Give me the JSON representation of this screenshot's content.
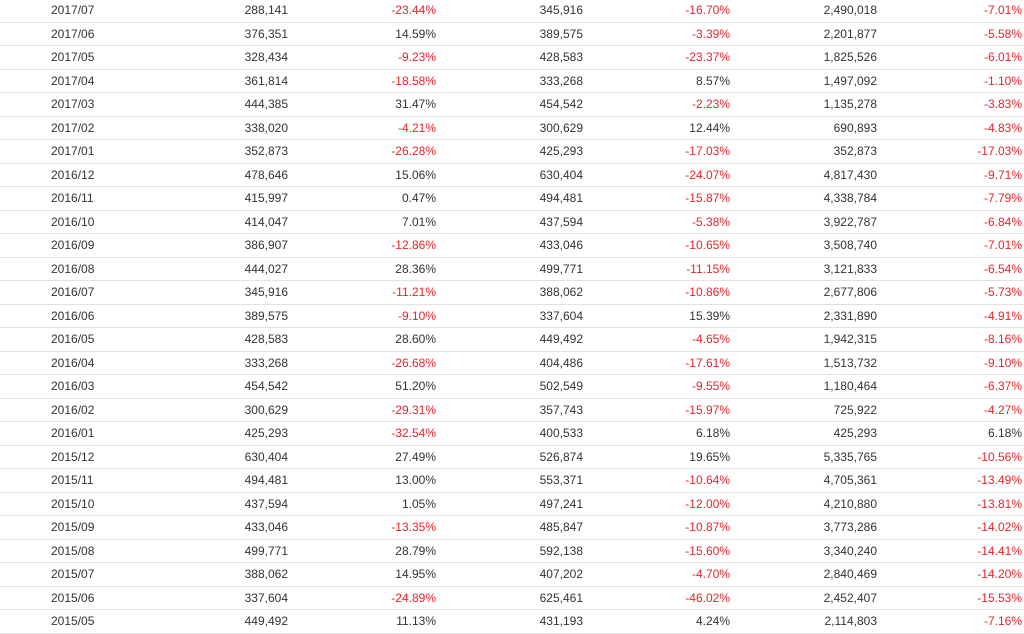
{
  "colors": {
    "text": "#333333",
    "negative": "#e8242b",
    "row_border": "#e2e2e2"
  },
  "rows": [
    [
      "2017/07",
      "288,141",
      "-23.44%",
      "345,916",
      "-16.70%",
      "2,490,018",
      "-7.01%"
    ],
    [
      "2017/06",
      "376,351",
      "14.59%",
      "389,575",
      "-3.39%",
      "2,201,877",
      "-5.58%"
    ],
    [
      "2017/05",
      "328,434",
      "-9.23%",
      "428,583",
      "-23.37%",
      "1,825,526",
      "-6.01%"
    ],
    [
      "2017/04",
      "361,814",
      "-18.58%",
      "333,268",
      "8.57%",
      "1,497,092",
      "-1.10%"
    ],
    [
      "2017/03",
      "444,385",
      "31.47%",
      "454,542",
      "-2.23%",
      "1,135,278",
      "-3.83%"
    ],
    [
      "2017/02",
      "338,020",
      "-4.21%",
      "300,629",
      "12.44%",
      "690,893",
      "-4.83%"
    ],
    [
      "2017/01",
      "352,873",
      "-26.28%",
      "425,293",
      "-17.03%",
      "352,873",
      "-17.03%"
    ],
    [
      "2016/12",
      "478,646",
      "15.06%",
      "630,404",
      "-24.07%",
      "4,817,430",
      "-9.71%"
    ],
    [
      "2016/11",
      "415,997",
      "0.47%",
      "494,481",
      "-15.87%",
      "4,338,784",
      "-7.79%"
    ],
    [
      "2016/10",
      "414,047",
      "7.01%",
      "437,594",
      "-5.38%",
      "3,922,787",
      "-6.84%"
    ],
    [
      "2016/09",
      "386,907",
      "-12.86%",
      "433,046",
      "-10.65%",
      "3,508,740",
      "-7.01%"
    ],
    [
      "2016/08",
      "444,027",
      "28.36%",
      "499,771",
      "-11.15%",
      "3,121,833",
      "-6.54%"
    ],
    [
      "2016/07",
      "345,916",
      "-11.21%",
      "388,062",
      "-10.86%",
      "2,677,806",
      "-5.73%"
    ],
    [
      "2016/06",
      "389,575",
      "-9.10%",
      "337,604",
      "15.39%",
      "2,331,890",
      "-4.91%"
    ],
    [
      "2016/05",
      "428,583",
      "28.60%",
      "449,492",
      "-4.65%",
      "1,942,315",
      "-8.16%"
    ],
    [
      "2016/04",
      "333,268",
      "-26.68%",
      "404,486",
      "-17.61%",
      "1,513,732",
      "-9.10%"
    ],
    [
      "2016/03",
      "454,542",
      "51.20%",
      "502,549",
      "-9.55%",
      "1,180,464",
      "-6.37%"
    ],
    [
      "2016/02",
      "300,629",
      "-29.31%",
      "357,743",
      "-15.97%",
      "725,922",
      "-4.27%"
    ],
    [
      "2016/01",
      "425,293",
      "-32.54%",
      "400,533",
      "6.18%",
      "425,293",
      "6.18%"
    ],
    [
      "2015/12",
      "630,404",
      "27.49%",
      "526,874",
      "19.65%",
      "5,335,765",
      "-10.56%"
    ],
    [
      "2015/11",
      "494,481",
      "13.00%",
      "553,371",
      "-10.64%",
      "4,705,361",
      "-13.49%"
    ],
    [
      "2015/10",
      "437,594",
      "1.05%",
      "497,241",
      "-12.00%",
      "4,210,880",
      "-13.81%"
    ],
    [
      "2015/09",
      "433,046",
      "-13.35%",
      "485,847",
      "-10.87%",
      "3,773,286",
      "-14.02%"
    ],
    [
      "2015/08",
      "499,771",
      "28.79%",
      "592,138",
      "-15.60%",
      "3,340,240",
      "-14.41%"
    ],
    [
      "2015/07",
      "388,062",
      "14.95%",
      "407,202",
      "-4.70%",
      "2,840,469",
      "-14.20%"
    ],
    [
      "2015/06",
      "337,604",
      "-24.89%",
      "625,461",
      "-46.02%",
      "2,452,407",
      "-15.53%"
    ],
    [
      "2015/05",
      "449,492",
      "11.13%",
      "431,193",
      "4.24%",
      "2,114,803",
      "-7.16%"
    ]
  ]
}
